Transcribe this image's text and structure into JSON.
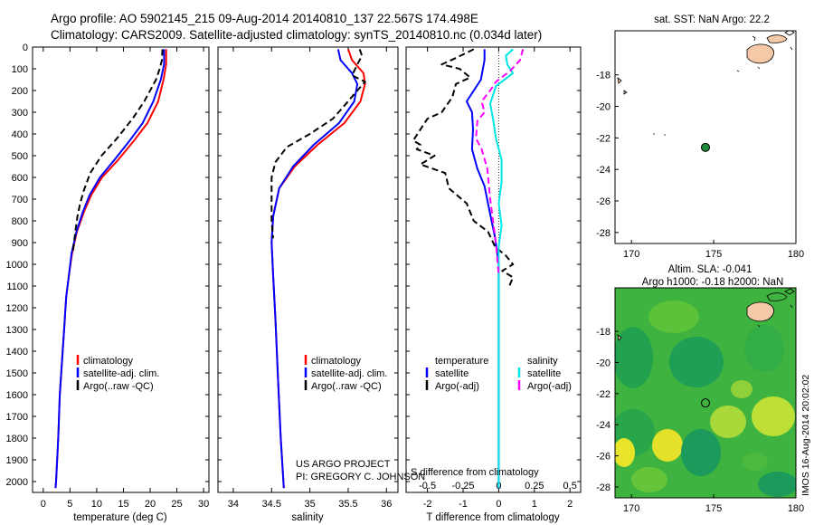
{
  "title_line1": "Argo profile: AO 5902145_215 09-Aug-2014 20140810_137 22.567S 174.498E",
  "title_line2": "Climatology: CARS2009. Satellite-adjusted climatology: synTS_20140810.nc (0.034d later)",
  "colors": {
    "climatology": "#ff0000",
    "satellite": "#0000ff",
    "argo": "#000000",
    "salinity_satellite": "#00e5e5",
    "salinity_argo": "#ff00ff",
    "argo_dot": "#1f8a3a",
    "land": "#f5c9a8"
  },
  "credits": {
    "line1": "US ARGO PROJECT",
    "line2": "PI: GREGORY C. JOHNSON"
  },
  "sidebar_label": "IMOS 16-Aug-2014 20:02:02",
  "chart_data": [
    {
      "type": "line",
      "xlabel": "temperature (deg C)",
      "ylabel": "",
      "xlim": [
        -2,
        31
      ],
      "ylim": [
        2050,
        0
      ],
      "xticks": [
        0,
        5,
        10,
        15,
        20,
        25,
        30
      ],
      "yticks": [
        0,
        100,
        200,
        300,
        400,
        500,
        600,
        700,
        800,
        900,
        1000,
        1100,
        1200,
        1300,
        1400,
        1500,
        1600,
        1700,
        1800,
        1900,
        2000
      ],
      "legend": [
        "climatology",
        "satellite-adj. clim.",
        "Argo(..raw -QC)"
      ],
      "series": [
        {
          "name": "climatology",
          "color": "climatology",
          "dash": false,
          "points": [
            [
              23,
              10
            ],
            [
              23,
              80
            ],
            [
              22.5,
              150
            ],
            [
              21.5,
              250
            ],
            [
              19.5,
              350
            ],
            [
              17,
              430
            ],
            [
              14,
              520
            ],
            [
              11,
              600
            ],
            [
              9,
              680
            ],
            [
              7.6,
              760
            ],
            [
              6.3,
              850
            ],
            [
              5.4,
              950
            ],
            [
              4.8,
              1050
            ],
            [
              4.3,
              1150
            ],
            [
              3.9,
              1300
            ],
            [
              3.5,
              1450
            ],
            [
              3.1,
              1600
            ],
            [
              2.8,
              1800
            ],
            [
              2.4,
              2000
            ],
            [
              2.3,
              2030
            ]
          ]
        },
        {
          "name": "satellite-adj. clim.",
          "color": "satellite",
          "dash": false,
          "points": [
            [
              22.6,
              10
            ],
            [
              22.6,
              80
            ],
            [
              22,
              150
            ],
            [
              20.6,
              250
            ],
            [
              18.6,
              350
            ],
            [
              16.2,
              430
            ],
            [
              13.3,
              520
            ],
            [
              10.6,
              600
            ],
            [
              8.7,
              680
            ],
            [
              7.4,
              760
            ],
            [
              6.2,
              850
            ],
            [
              5.3,
              950
            ],
            [
              4.8,
              1050
            ],
            [
              4.3,
              1150
            ],
            [
              3.9,
              1300
            ],
            [
              3.5,
              1450
            ],
            [
              3.1,
              1600
            ],
            [
              2.8,
              1800
            ],
            [
              2.4,
              2000
            ],
            [
              2.3,
              2030
            ]
          ]
        },
        {
          "name": "Argo(..raw -QC)",
          "color": "argo",
          "dash": true,
          "points": [
            [
              22.3,
              10
            ],
            [
              22.2,
              60
            ],
            [
              21.8,
              100
            ],
            [
              21.1,
              150
            ],
            [
              18.9,
              250
            ],
            [
              16.7,
              330
            ],
            [
              13.8,
              420
            ],
            [
              10.9,
              500
            ],
            [
              8.8,
              580
            ],
            [
              7.6,
              660
            ],
            [
              6.9,
              720
            ],
            [
              6.4,
              780
            ],
            [
              6,
              850
            ],
            [
              5.5,
              950
            ]
          ]
        }
      ]
    },
    {
      "type": "line",
      "xlabel": "salinity",
      "ylabel": "",
      "xlim": [
        33.8,
        36.15
      ],
      "ylim": [
        2050,
        0
      ],
      "xticks": [
        34,
        34.5,
        35,
        35.5,
        36
      ],
      "yticks": [],
      "legend": [
        "climatology",
        "satellite-adj. clim.",
        "Argo(..raw -QC)"
      ],
      "series": [
        {
          "name": "climatology",
          "color": "climatology",
          "dash": false,
          "points": [
            [
              35.5,
              10
            ],
            [
              35.55,
              60
            ],
            [
              35.7,
              120
            ],
            [
              35.72,
              170
            ],
            [
              35.66,
              250
            ],
            [
              35.45,
              350
            ],
            [
              35.1,
              450
            ],
            [
              34.8,
              550
            ],
            [
              34.6,
              650
            ],
            [
              34.52,
              780
            ],
            [
              34.5,
              900
            ],
            [
              34.52,
              1050
            ],
            [
              34.55,
              1250
            ],
            [
              34.58,
              1500
            ],
            [
              34.62,
              1800
            ],
            [
              34.66,
              2030
            ]
          ]
        },
        {
          "name": "satellite-adj. clim.",
          "color": "satellite",
          "dash": false,
          "points": [
            [
              35.37,
              10
            ],
            [
              35.4,
              60
            ],
            [
              35.55,
              120
            ],
            [
              35.62,
              170
            ],
            [
              35.58,
              250
            ],
            [
              35.38,
              350
            ],
            [
              35.05,
              450
            ],
            [
              34.78,
              550
            ],
            [
              34.6,
              650
            ],
            [
              34.52,
              780
            ],
            [
              34.5,
              900
            ],
            [
              34.52,
              1050
            ],
            [
              34.55,
              1250
            ],
            [
              34.58,
              1500
            ],
            [
              34.62,
              1800
            ],
            [
              34.66,
              2030
            ]
          ]
        },
        {
          "name": "Argo(..raw -QC)",
          "color": "argo",
          "dash": true,
          "points": [
            [
              35.65,
              10
            ],
            [
              35.68,
              40
            ],
            [
              35.62,
              80
            ],
            [
              35.55,
              130
            ],
            [
              35.72,
              160
            ],
            [
              35.62,
              200
            ],
            [
              35.45,
              270
            ],
            [
              35.3,
              330
            ],
            [
              35,
              400
            ],
            [
              34.7,
              460
            ],
            [
              34.55,
              530
            ],
            [
              34.5,
              600
            ],
            [
              34.5,
              700
            ],
            [
              34.5,
              800
            ],
            [
              34.52,
              880
            ]
          ]
        }
      ]
    },
    {
      "type": "line",
      "xlabel": "T difference from climatology",
      "xlabel2": "S difference from climatology",
      "ylabel": "",
      "xlim": [
        -2.6,
        2.3
      ],
      "ylim": [
        2050,
        0
      ],
      "xticks": [
        -2,
        -1,
        0,
        1,
        2
      ],
      "xticks2": [
        -0.5,
        -0.25,
        0,
        0.25,
        0.5
      ],
      "xlim2": [
        -0.65,
        0.575
      ],
      "legend_titles": [
        "temperature",
        "salinity"
      ],
      "legend": [
        "satellite",
        "Argo(-adj)",
        "satellite",
        "Argo(-adj)"
      ],
      "series": [
        {
          "name": "satellite",
          "group": "temperature",
          "color": "satellite",
          "dash": false,
          "points": [
            [
              -0.4,
              10
            ],
            [
              -0.4,
              60
            ],
            [
              -0.5,
              150
            ],
            [
              -0.9,
              250
            ],
            [
              -0.75,
              300
            ],
            [
              -0.72,
              380
            ],
            [
              -0.75,
              470
            ],
            [
              -0.6,
              560
            ],
            [
              -0.4,
              640
            ],
            [
              -0.3,
              720
            ],
            [
              -0.2,
              800
            ],
            [
              -0.1,
              880
            ],
            [
              0,
              1000
            ],
            [
              0,
              1100
            ],
            [
              0,
              1300
            ],
            [
              0,
              1600
            ],
            [
              0,
              1800
            ],
            [
              0,
              2030
            ]
          ]
        },
        {
          "name": "Argo(-adj)",
          "group": "temperature",
          "color": "argo",
          "dash": true,
          "points": [
            [
              -0.7,
              10
            ],
            [
              -1.2,
              50
            ],
            [
              -1.6,
              80
            ],
            [
              -1.1,
              100
            ],
            [
              -0.8,
              140
            ],
            [
              -1.2,
              170
            ],
            [
              -1.3,
              230
            ],
            [
              -1.6,
              300
            ],
            [
              -2,
              330
            ],
            [
              -2.4,
              430
            ],
            [
              -2.2,
              450
            ],
            [
              -2.3,
              470
            ],
            [
              -1.8,
              500
            ],
            [
              -2.2,
              540
            ],
            [
              -1.5,
              580
            ],
            [
              -1.4,
              650
            ],
            [
              -0.9,
              720
            ],
            [
              -0.7,
              800
            ],
            [
              -0.3,
              850
            ],
            [
              -0.1,
              920
            ],
            [
              0.2,
              960
            ],
            [
              0.4,
              1000
            ],
            [
              0.1,
              1030
            ],
            [
              0.4,
              1060
            ],
            [
              0.3,
              1100
            ]
          ]
        },
        {
          "name": "satellite",
          "group": "salinity",
          "color": "salinity_satellite",
          "dash": false,
          "points": [
            [
              0.1,
              10
            ],
            [
              0.05,
              40
            ],
            [
              0.06,
              80
            ],
            [
              0.1,
              120
            ],
            [
              -0.02,
              180
            ],
            [
              -0.06,
              260
            ],
            [
              -0.04,
              330
            ],
            [
              -0.02,
              420
            ],
            [
              0.02,
              520
            ],
            [
              0.02,
              620
            ],
            [
              0.0,
              720
            ],
            [
              0.02,
              820
            ],
            [
              0.0,
              920
            ],
            [
              0,
              1100
            ],
            [
              0,
              1500
            ],
            [
              0,
              2030
            ]
          ]
        },
        {
          "name": "Argo(-adj)",
          "group": "salinity",
          "color": "salinity_argo",
          "dash": true,
          "points": [
            [
              0.17,
              10
            ],
            [
              0.15,
              60
            ],
            [
              0.08,
              110
            ],
            [
              -0.02,
              160
            ],
            [
              -0.06,
              200
            ],
            [
              -0.12,
              250
            ],
            [
              -0.1,
              300
            ],
            [
              -0.15,
              340
            ],
            [
              -0.16,
              420
            ],
            [
              -0.12,
              470
            ],
            [
              -0.08,
              560
            ],
            [
              -0.06,
              700
            ],
            [
              -0.04,
              800
            ],
            [
              -0.02,
              900
            ],
            [
              0,
              1050
            ]
          ]
        }
      ]
    },
    {
      "type": "map",
      "title": "sat. SST: NaN Argo: 22.2",
      "xlim": [
        169,
        180
      ],
      "ylim": [
        -28.7,
        -15.2
      ],
      "xticks": [
        170,
        175,
        180
      ],
      "yticks": [
        -18,
        -20,
        -22,
        -24,
        -26,
        -28
      ],
      "argo_position": [
        174.5,
        -22.6
      ]
    },
    {
      "type": "heatmap",
      "title_line1": "Altim. SLA: -0.041",
      "title_line2": "Argo h1000: -0.18 h2000: NaN",
      "xlim": [
        169,
        180
      ],
      "ylim": [
        -28.7,
        -15.2
      ],
      "xticks": [
        170,
        175,
        180
      ],
      "yticks": [
        -18,
        -20,
        -22,
        -24,
        -26,
        -28
      ],
      "argo_position": [
        174.5,
        -22.6
      ]
    }
  ]
}
